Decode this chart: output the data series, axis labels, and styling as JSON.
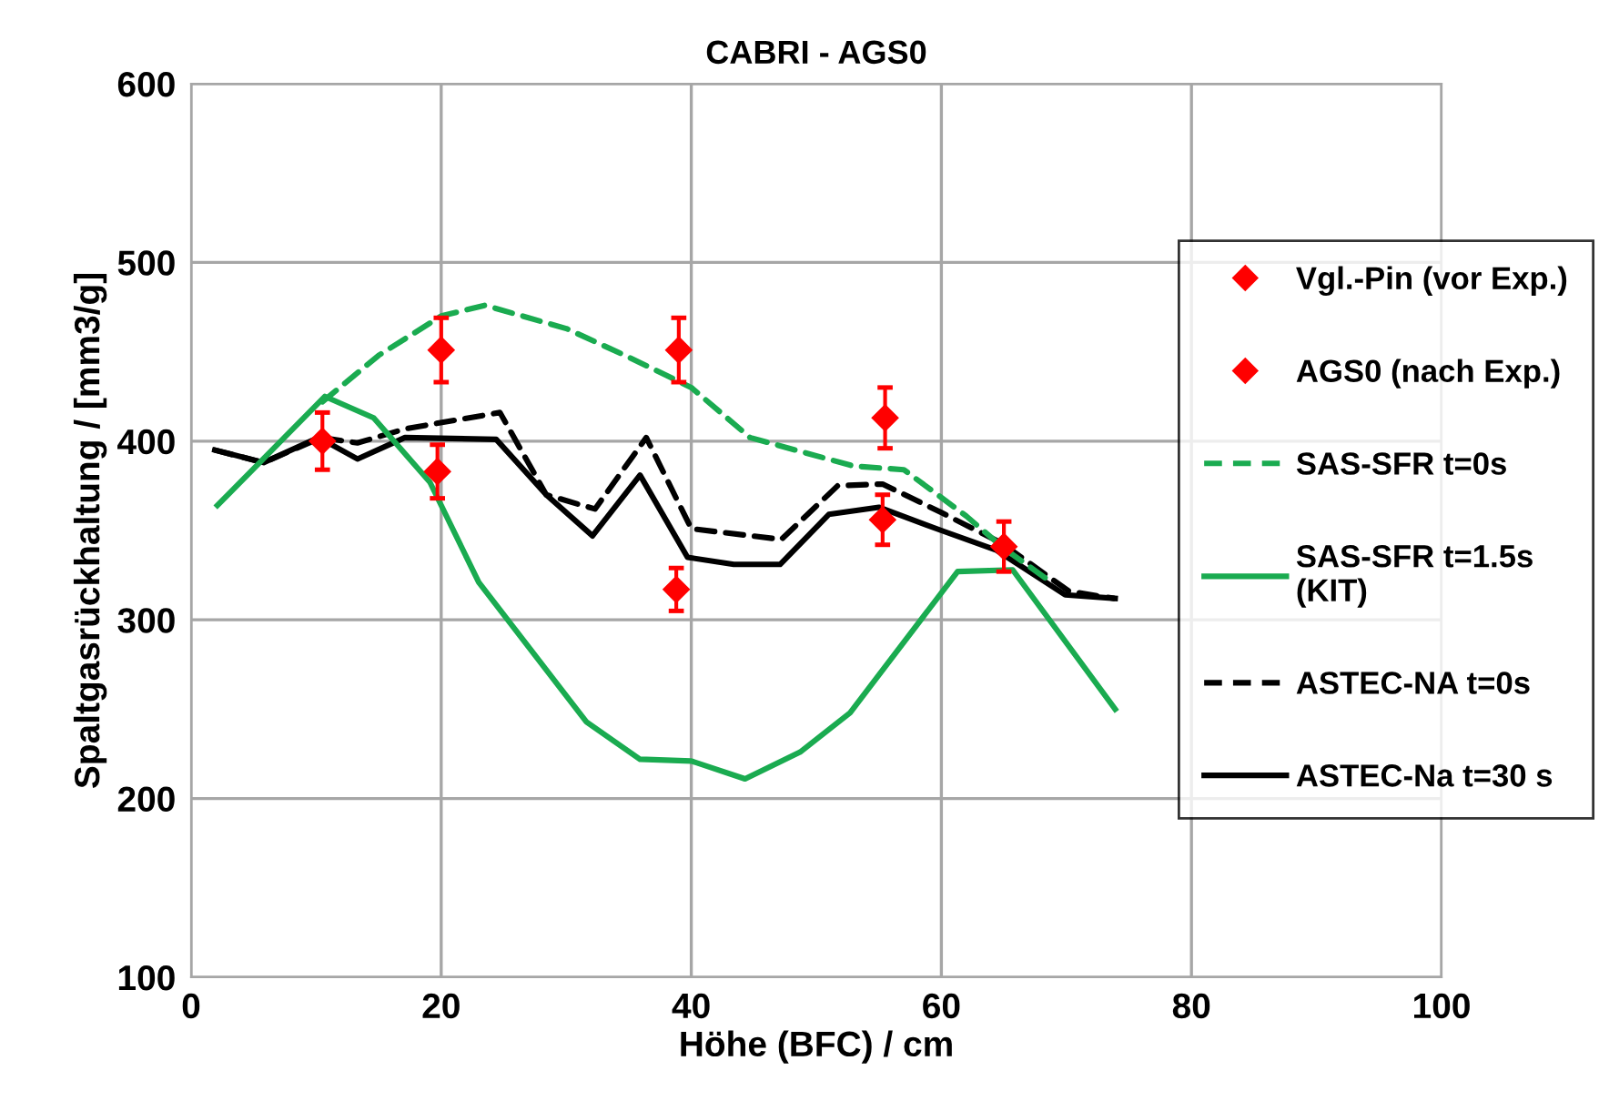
{
  "chart_data": {
    "type": "line",
    "title": "CABRI - AGS0",
    "xlabel": "Höhe (BFC) / cm",
    "ylabel": "Spaltgasrückhaltung / [mm3/g]",
    "xlim": [
      0,
      100
    ],
    "xticks": [
      0,
      20,
      40,
      60,
      80,
      100
    ],
    "ylim": [
      100,
      600
    ],
    "yticks": [
      100,
      200,
      300,
      400,
      500,
      600
    ],
    "grid": true,
    "legend": "right",
    "series": [
      {
        "name": "Vgl.-Pin (vor Exp.)",
        "type": "scatter",
        "marker": "diamond",
        "color": "#ff0000",
        "x": [
          10.5,
          20,
          39,
          55.5,
          65
        ],
        "values": [
          400,
          451,
          451,
          413,
          341
        ],
        "errors": [
          16,
          18,
          18,
          17,
          14
        ]
      },
      {
        "name": "AGS0 (nach Exp.)",
        "type": "scatter",
        "marker": "diamond",
        "color": "#ff0000",
        "x": [
          19.7,
          38.8,
          55.3
        ],
        "values": [
          383,
          317,
          356
        ],
        "errors": [
          15,
          12,
          14
        ]
      },
      {
        "name": "SAS-SFR t=0s",
        "line_style": "dashed",
        "color": "#1aab50",
        "x": [
          10.5,
          15,
          20,
          23.5,
          30,
          35,
          40,
          44.7,
          53,
          57,
          62,
          65,
          69
        ],
        "values": [
          422,
          448,
          470,
          476,
          463,
          447,
          430,
          402,
          386,
          384,
          358,
          340,
          320
        ]
      },
      {
        "name": "SAS-SFR t=1.5s\n(KIT)",
        "line_style": "solid",
        "color": "#1aab50",
        "x": [
          2.1,
          10.7,
          14.6,
          19.1,
          23,
          31.6,
          35.9,
          40,
          44.3,
          48.7,
          52.7,
          61.3,
          65.7,
          73.9
        ],
        "values": [
          364,
          425,
          413,
          377,
          321,
          243,
          222,
          221,
          211,
          226,
          248,
          327,
          328,
          250
        ]
      },
      {
        "name": "ASTEC-NA t=0s",
        "line_style": "dashed",
        "color": "#000000",
        "x": [
          1.9,
          5.8,
          10.4,
          13.3,
          17.2,
          24.7,
          28.4,
          32.3,
          36.4,
          40,
          47.2,
          51.7,
          55.3,
          60,
          64.8,
          70.2,
          73.8
        ],
        "values": [
          395,
          388,
          402,
          399,
          407,
          416,
          370,
          362,
          402,
          351,
          345,
          375,
          376,
          360,
          343,
          316,
          312
        ]
      },
      {
        "name": "ASTEC-Na t=30 s",
        "line_style": "solid",
        "color": "#000000",
        "x": [
          1.9,
          5.8,
          10.2,
          13.3,
          17.1,
          24.4,
          28.4,
          32.1,
          35.9,
          39.7,
          43.4,
          47.1,
          51,
          55,
          60,
          64.4,
          69.9,
          73.9
        ],
        "values": [
          395,
          388,
          402,
          390,
          402,
          401,
          370,
          347,
          381,
          335,
          331,
          331,
          359,
          363,
          350,
          339,
          314,
          312
        ]
      }
    ]
  }
}
